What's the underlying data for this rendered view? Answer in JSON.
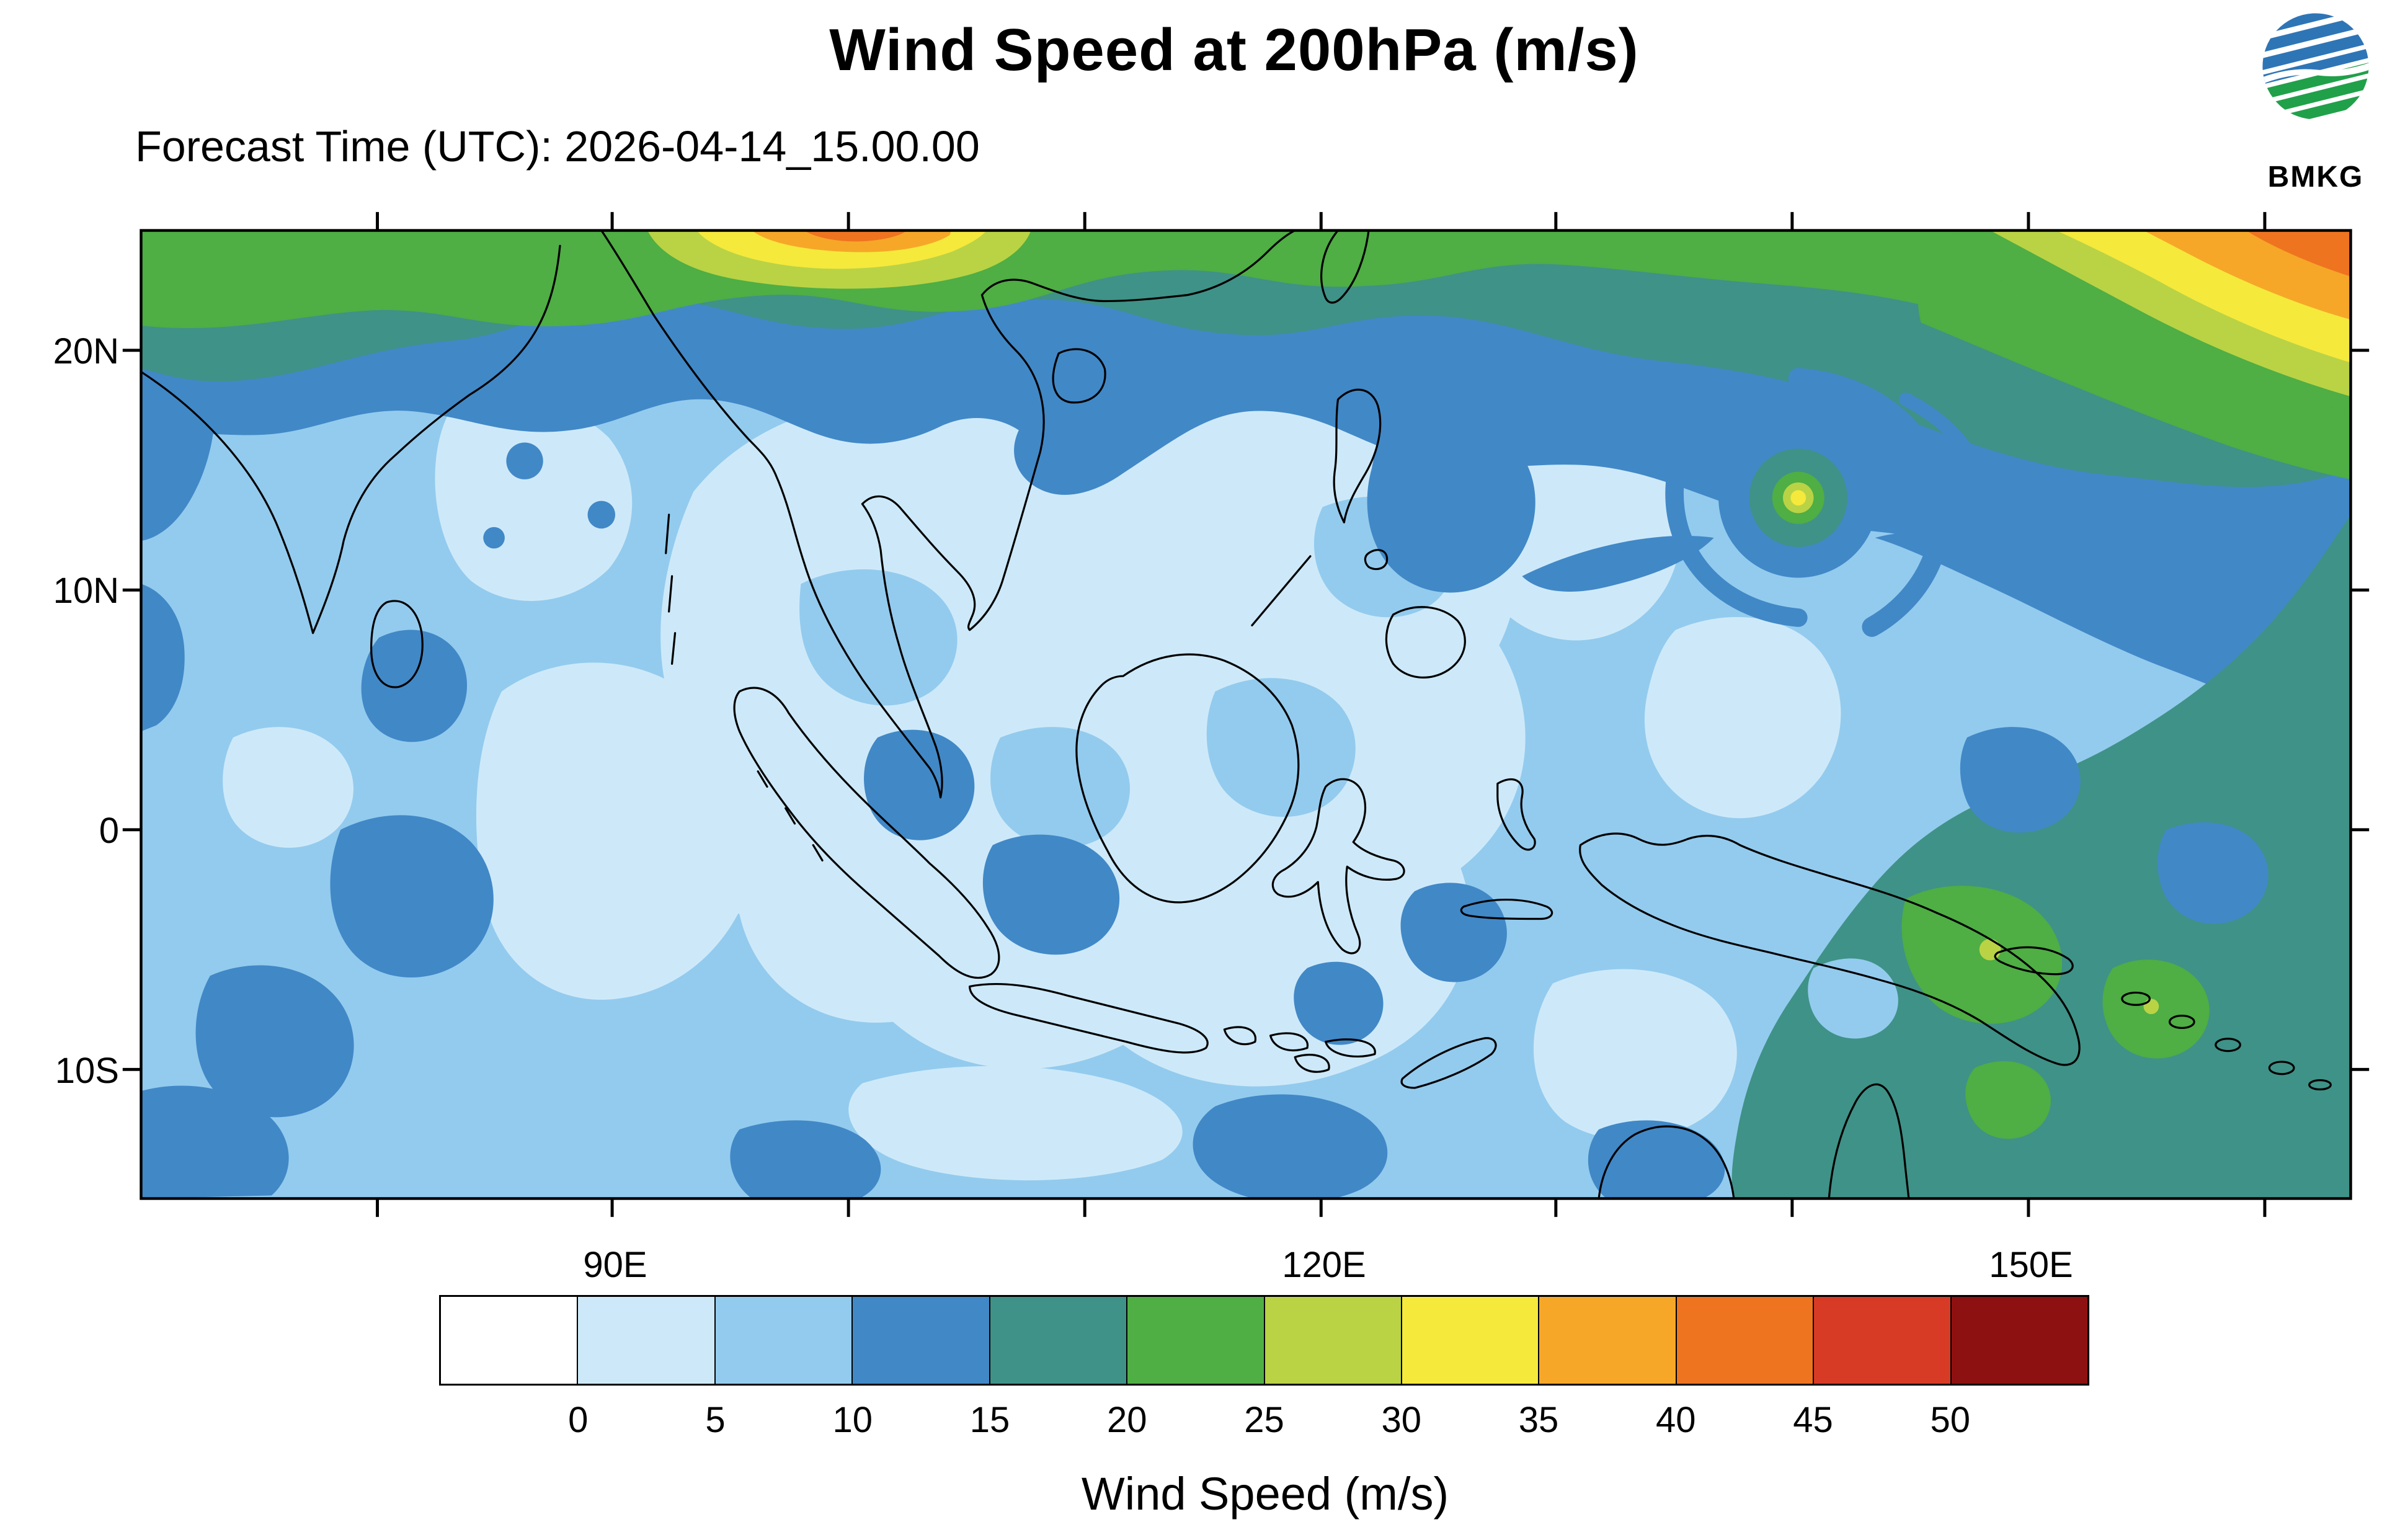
{
  "header": {
    "title": "Wind Speed at 200hPa (m/s)",
    "forecast_time": "Forecast Time (UTC): 2026-04-14_15.00.00",
    "logo_text": "BMKG"
  },
  "map": {
    "lat_labels": [
      "20N",
      "10N",
      "0",
      "10S"
    ],
    "lon_labels": [
      "90E",
      "120E",
      "150E"
    ]
  },
  "colorbar": {
    "caption": "Wind Speed (m/s)",
    "tick_labels": [
      "0",
      "5",
      "10",
      "15",
      "20",
      "25",
      "30",
      "35",
      "40",
      "45",
      "50"
    ],
    "colors": [
      "#ffffff",
      "#cde9f9",
      "#93cbee",
      "#4188c7",
      "#3f9287",
      "#4fae44",
      "#b9d345",
      "#f5e93c",
      "#f6a728",
      "#ee7420",
      "#d73b26",
      "#8d1111"
    ]
  }
}
